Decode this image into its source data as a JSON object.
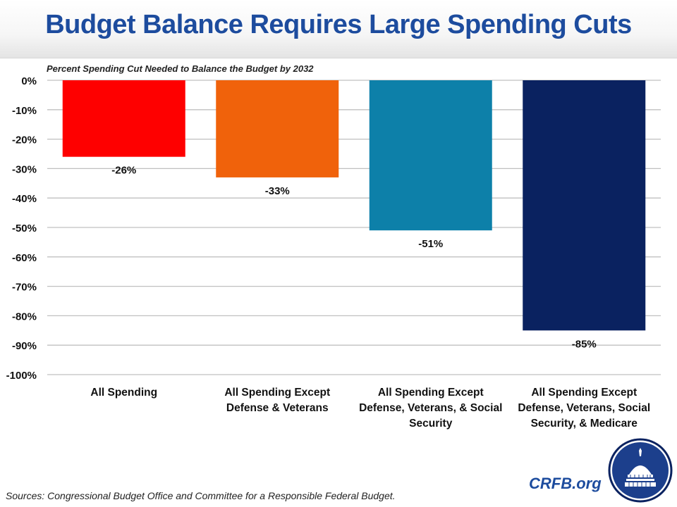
{
  "header": {
    "title": "Budget Balance Requires Large Spending Cuts"
  },
  "chart_data": {
    "type": "bar",
    "title": "Budget Balance Requires Large Spending Cuts",
    "subtitle": "Percent Spending Cut Needed to Balance the Budget by 2032",
    "categories": [
      [
        "All Spending"
      ],
      [
        "All Spending Except",
        "Defense & Veterans"
      ],
      [
        "All Spending Except",
        "Defense, Veterans, & Social",
        "Security"
      ],
      [
        "All Spending Except",
        "Defense, Veterans, Social",
        "Security, & Medicare"
      ]
    ],
    "values": [
      -26,
      -33,
      -51,
      -85
    ],
    "data_labels": [
      "-26%",
      "-33%",
      "-51%",
      "-85%"
    ],
    "colors": [
      "#fe0000",
      "#f0620b",
      "#0d80a9",
      "#0a2260"
    ],
    "ylim": [
      -100,
      0
    ],
    "yticks": [
      0,
      -10,
      -20,
      -30,
      -40,
      -50,
      -60,
      -70,
      -80,
      -90,
      -100
    ],
    "ytick_labels": [
      "0%",
      "-10%",
      "-20%",
      "-30%",
      "-40%",
      "-50%",
      "-60%",
      "-70%",
      "-80%",
      "-90%",
      "-100%"
    ],
    "xlabel": "",
    "ylabel": "",
    "grid": true,
    "legend": "none"
  },
  "footer": {
    "source": "Sources: Congressional Budget Office and Committee for a Responsible Federal Budget.",
    "brand": "CRFB.org"
  },
  "logo": {
    "icon": "capitol-dome-icon"
  }
}
